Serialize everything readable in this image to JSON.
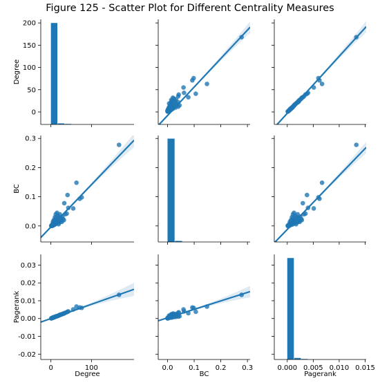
{
  "figure": {
    "title": "Figure 125 - Scatter Plot for Different Centrality Measures"
  },
  "colors": {
    "series": "#1f77b4",
    "band": "#1f77b4",
    "axis": "#000000"
  },
  "chart_data": {
    "type": "scatter",
    "layout": "pairplot",
    "variables": [
      "Degree",
      "BC",
      "Pagerank"
    ],
    "axes": {
      "Degree": {
        "lim": [
          -28,
          208
        ],
        "ticks": [
          0,
          50,
          100,
          150,
          200
        ],
        "xlim": [
          -25,
          205
        ],
        "xticks": [
          0,
          100
        ],
        "tick_labels": [
          "0",
          "50",
          "100",
          "150",
          "200"
        ],
        "xtick_labels": [
          "0",
          "100"
        ]
      },
      "BC": {
        "lim": [
          -0.055,
          0.31
        ],
        "ticks": [
          0.0,
          0.1,
          0.2,
          0.3
        ],
        "xlim": [
          -0.035,
          0.31
        ],
        "xticks": [
          0.0,
          0.1,
          0.2,
          0.3
        ],
        "tick_labels": [
          "0.0",
          "0.1",
          "0.2",
          "0.3"
        ],
        "xtick_labels": [
          "0.0",
          "0.1",
          "0.2",
          "0.3"
        ]
      },
      "Pagerank": {
        "lim": [
          -0.023,
          0.036
        ],
        "ticks": [
          -0.02,
          -0.01,
          0.0,
          0.01,
          0.02,
          0.03
        ],
        "xlim": [
          -0.0025,
          0.0152
        ],
        "xticks": [
          0.0,
          0.005,
          0.01,
          0.015
        ],
        "tick_labels": [
          "-0.02",
          "-0.01",
          "0.00",
          "0.01",
          "0.02",
          "0.03"
        ],
        "xtick_labels": [
          "0.000",
          "0.005",
          "0.010",
          "0.015"
        ]
      }
    },
    "histograms": {
      "Degree": {
        "bins": [
          [
            0,
            17,
            197
          ],
          [
            17,
            34,
            2
          ],
          [
            34,
            51,
            1
          ]
        ],
        "ylim": [
          0,
          204
        ]
      },
      "BC": {
        "bins": [
          [
            0.0,
            0.028,
            198
          ],
          [
            0.028,
            0.056,
            2
          ]
        ],
        "ylim": [
          0,
          204
        ]
      },
      "Pagerank": {
        "bins": [
          [
            0.0,
            0.00135,
            197
          ],
          [
            0.00135,
            0.0027,
            3
          ],
          [
            0.0027,
            0.004,
            1
          ]
        ],
        "ylim": [
          0,
          204
        ]
      }
    },
    "points": [
      {
        "Degree": 168,
        "BC": 0.278,
        "Pagerank": 0.0133
      },
      {
        "Degree": 76,
        "BC": 0.098,
        "Pagerank": 0.006
      },
      {
        "Degree": 71,
        "BC": 0.093,
        "Pagerank": 0.0062
      },
      {
        "Degree": 63,
        "BC": 0.148,
        "Pagerank": 0.0067
      },
      {
        "Degree": 55,
        "BC": 0.06,
        "Pagerank": 0.0051
      },
      {
        "Degree": 41,
        "BC": 0.106,
        "Pagerank": 0.0038
      },
      {
        "Degree": 43,
        "BC": 0.062,
        "Pagerank": 0.004
      },
      {
        "Degree": 39,
        "BC": 0.042,
        "Pagerank": 0.0035
      },
      {
        "Degree": 35,
        "BC": 0.04,
        "Pagerank": 0.0032
      },
      {
        "Degree": 33,
        "BC": 0.078,
        "Pagerank": 0.003
      },
      {
        "Degree": 30,
        "BC": 0.024,
        "Pagerank": 0.0027
      },
      {
        "Degree": 28,
        "BC": 0.032,
        "Pagerank": 0.0025
      },
      {
        "Degree": 26,
        "BC": 0.018,
        "Pagerank": 0.0023
      },
      {
        "Degree": 24,
        "BC": 0.028,
        "Pagerank": 0.0021
      },
      {
        "Degree": 22,
        "BC": 0.04,
        "Pagerank": 0.002
      },
      {
        "Degree": 21,
        "BC": 0.012,
        "Pagerank": 0.0019
      },
      {
        "Degree": 20,
        "BC": 0.03,
        "Pagerank": 0.0018
      },
      {
        "Degree": 18,
        "BC": 0.022,
        "Pagerank": 0.0016
      },
      {
        "Degree": 17,
        "BC": 0.035,
        "Pagerank": 0.0015
      },
      {
        "Degree": 16,
        "BC": 0.01,
        "Pagerank": 0.0014
      },
      {
        "Degree": 15,
        "BC": 0.045,
        "Pagerank": 0.0013
      },
      {
        "Degree": 14,
        "BC": 0.02,
        "Pagerank": 0.0013
      },
      {
        "Degree": 13,
        "BC": 0.008,
        "Pagerank": 0.0012
      },
      {
        "Degree": 12,
        "BC": 0.026,
        "Pagerank": 0.0011
      },
      {
        "Degree": 12,
        "BC": 0.04,
        "Pagerank": 0.0011
      },
      {
        "Degree": 11,
        "BC": 0.015,
        "Pagerank": 0.001
      },
      {
        "Degree": 10,
        "BC": 0.03,
        "Pagerank": 0.0009
      },
      {
        "Degree": 10,
        "BC": 0.005,
        "Pagerank": 0.001
      },
      {
        "Degree": 9,
        "BC": 0.018,
        "Pagerank": 0.0009
      },
      {
        "Degree": 9,
        "BC": 0.01,
        "Pagerank": 0.0008
      },
      {
        "Degree": 8,
        "BC": 0.012,
        "Pagerank": 0.0008
      },
      {
        "Degree": 8,
        "BC": 0.004,
        "Pagerank": 0.0007
      },
      {
        "Degree": 7,
        "BC": 0.02,
        "Pagerank": 0.0007
      },
      {
        "Degree": 7,
        "BC": 0.006,
        "Pagerank": 0.0006
      },
      {
        "Degree": 6,
        "BC": 0.009,
        "Pagerank": 0.0006
      },
      {
        "Degree": 6,
        "BC": 0.002,
        "Pagerank": 0.0005
      },
      {
        "Degree": 5,
        "BC": 0.014,
        "Pagerank": 0.0005
      },
      {
        "Degree": 5,
        "BC": 0.003,
        "Pagerank": 0.0005
      },
      {
        "Degree": 4,
        "BC": 0.006,
        "Pagerank": 0.0004
      },
      {
        "Degree": 4,
        "BC": 0.001,
        "Pagerank": 0.0004
      },
      {
        "Degree": 3,
        "BC": 0.004,
        "Pagerank": 0.0003
      },
      {
        "Degree": 3,
        "BC": 0.0,
        "Pagerank": 0.0003
      },
      {
        "Degree": 2,
        "BC": 0.002,
        "Pagerank": 0.0002
      },
      {
        "Degree": 2,
        "BC": 0.0,
        "Pagerank": 0.0002
      },
      {
        "Degree": 1,
        "BC": 0.0,
        "Pagerank": 0.0001
      },
      {
        "Degree": 1,
        "BC": 0.001,
        "Pagerank": 0.0001
      },
      {
        "Degree": 23,
        "BC": 0.016,
        "Pagerank": 0.0022
      },
      {
        "Degree": 19,
        "BC": 0.006,
        "Pagerank": 0.0017
      },
      {
        "Degree": 27,
        "BC": 0.014,
        "Pagerank": 0.0024
      },
      {
        "Degree": 32,
        "BC": 0.02,
        "Pagerank": 0.0028
      }
    ],
    "regression": {
      "Degree|BC": {
        "slope": 0.00145,
        "intercept": -0.0035
      },
      "Degree|Pagerank": {
        "slope": 8e-05,
        "intercept": 0.0
      },
      "BC|Degree": {
        "slope": 640,
        "intercept": -8
      },
      "BC|Pagerank": {
        "slope": 0.0475,
        "intercept": 0.0004
      },
      "Pagerank|Degree": {
        "slope": 12800,
        "intercept": -3
      },
      "Pagerank|BC": {
        "slope": 18.5,
        "intercept": -0.012
      }
    }
  }
}
